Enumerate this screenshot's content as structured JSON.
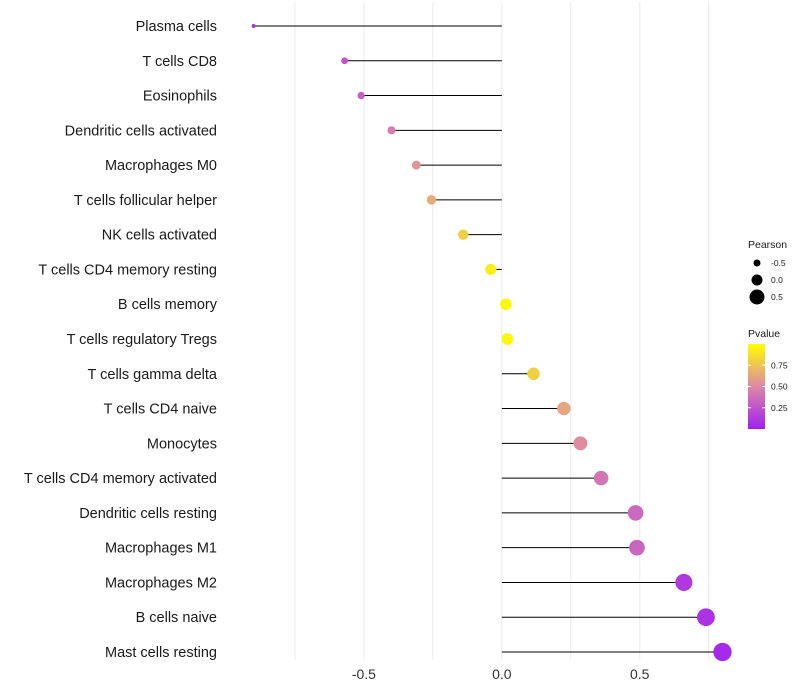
{
  "chart_data": {
    "type": "lollipop",
    "title": "",
    "xlabel": "",
    "ylabel": "",
    "xlim": [
      -1.0,
      0.82
    ],
    "x_ticks": [
      -0.5,
      0.0,
      0.5
    ],
    "x_tick_labels": [
      "-0.5",
      "0.0",
      "0.5"
    ],
    "grid": true,
    "categories": [
      "Plasma cells",
      "T cells CD8",
      "Eosinophils",
      "Dendritic cells activated",
      "Macrophages M0",
      "T cells follicular helper",
      "NK cells activated",
      "T cells CD4 memory resting",
      "B cells memory",
      "T cells regulatory  Tregs ",
      "T cells gamma delta",
      "T cells CD4 naive",
      "Monocytes",
      "T cells CD4 memory activated",
      "Dendritic cells resting",
      "Macrophages M1",
      "Macrophages M2",
      "B cells naive",
      "Mast cells resting"
    ],
    "values": [
      -0.9,
      -0.57,
      -0.51,
      -0.4,
      -0.31,
      -0.255,
      -0.14,
      -0.04,
      0.015,
      0.02,
      0.115,
      0.225,
      0.285,
      0.36,
      0.485,
      0.49,
      0.66,
      0.74,
      0.8
    ],
    "pvalues": [
      0.1,
      0.25,
      0.3,
      0.45,
      0.55,
      0.65,
      0.8,
      0.93,
      0.98,
      0.97,
      0.8,
      0.62,
      0.52,
      0.42,
      0.35,
      0.33,
      0.12,
      0.08,
      0.05
    ],
    "legend": {
      "position": "right",
      "size_title": "Pearson",
      "size_entries": [
        {
          "label": "-0.5",
          "value": -0.5
        },
        {
          "label": "0.0",
          "value": 0.0
        },
        {
          "label": "0.5",
          "value": 0.5
        }
      ],
      "color_title": "Pvalue",
      "color_ticks": [
        {
          "label": "0.75",
          "value": 0.75
        },
        {
          "label": "0.50",
          "value": 0.5
        },
        {
          "label": "0.25",
          "value": 0.25
        }
      ],
      "color_range": [
        0.0,
        1.0
      ]
    },
    "colors": {
      "low": "#a020f0",
      "mid": "#dd88a8",
      "high": "#ffff00",
      "stem": "#000000",
      "grid": "#ebebeb"
    }
  }
}
